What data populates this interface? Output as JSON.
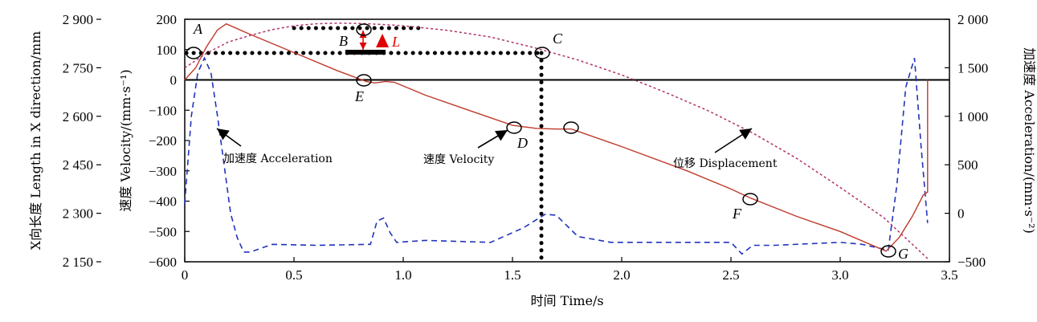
{
  "chart_data": {
    "type": "line",
    "x_axis": {
      "label": "时间  Time/s",
      "range": [
        0,
        3.5
      ],
      "ticks": [
        0,
        0.5,
        1.0,
        1.5,
        2.0,
        2.5,
        3.0,
        3.5
      ],
      "tick_labels": [
        "0",
        "0.5",
        "1.0",
        "1.5",
        "2.0",
        "2.5",
        "3.0",
        "3.5"
      ]
    },
    "y_axis_velocity": {
      "label": "速度  Velocity/(mm·s⁻¹)",
      "range": [
        -600,
        200
      ],
      "ticks": [
        -600,
        -500,
        -400,
        -300,
        -200,
        -100,
        0,
        100,
        200
      ],
      "tick_labels": [
        "−600",
        "−500",
        "−400",
        "−300",
        "−200",
        "−100",
        "0",
        "100",
        "200"
      ]
    },
    "y_axis_length": {
      "label": "X向长度  Length in X direction/mm",
      "range": [
        2150,
        2900
      ],
      "ticks": [
        2150,
        2300,
        2450,
        2600,
        2750,
        2900
      ],
      "tick_labels": [
        "2 150",
        "2 300",
        "2 450",
        "2 600",
        "2 750",
        "2 900"
      ]
    },
    "y_axis_acceleration": {
      "label": "加速度  Acceleration/(mm·s⁻²)",
      "range": [
        -500,
        2000
      ],
      "ticks": [
        -500,
        0,
        500,
        1000,
        1500,
        2000
      ],
      "tick_labels": [
        "−500",
        "0",
        "500",
        "1 000",
        "1 500",
        "2 000"
      ]
    },
    "series": [
      {
        "name": "速度 Velocity",
        "axis": "velocity",
        "color": "#c0392b",
        "style": "solid",
        "x": [
          0,
          0.05,
          0.1,
          0.15,
          0.19,
          0.3,
          0.5,
          0.7,
          0.83,
          0.87,
          0.92,
          0.96,
          1.1,
          1.3,
          1.5,
          1.61,
          1.7,
          1.77,
          2.0,
          2.3,
          2.5,
          2.59,
          2.8,
          3.0,
          3.21,
          3.27,
          3.33,
          3.38,
          3.4,
          3.4
        ],
        "y": [
          0,
          40,
          110,
          165,
          185,
          150,
          90,
          30,
          -5,
          -10,
          -5,
          -8,
          -50,
          -100,
          -150,
          -160,
          -162,
          -162,
          -220,
          -300,
          -360,
          -390,
          -450,
          -500,
          -565,
          -520,
          -450,
          -380,
          -370,
          0
        ]
      },
      {
        "name": "位移 Displacement",
        "axis": "length",
        "color": "#b0306a",
        "style": "dashed",
        "x": [
          0,
          0.1,
          0.2,
          0.3,
          0.4,
          0.5,
          0.6,
          0.7,
          0.8,
          0.9,
          1.0,
          1.2,
          1.4,
          1.6,
          1.8,
          2.0,
          2.2,
          2.4,
          2.6,
          2.8,
          3.0,
          3.2,
          3.4
        ],
        "y": [
          2750,
          2795,
          2830,
          2850,
          2868,
          2880,
          2886,
          2888,
          2887,
          2884,
          2880,
          2866,
          2845,
          2812,
          2774,
          2728,
          2674,
          2616,
          2548,
          2470,
          2380,
          2286,
          2160
        ]
      },
      {
        "name": "加速度 Acceleration",
        "axis": "acceleration",
        "color": "#2233bb",
        "style": "dashed",
        "x": [
          0,
          0.03,
          0.06,
          0.09,
          0.12,
          0.15,
          0.18,
          0.21,
          0.24,
          0.27,
          0.3,
          0.4,
          0.6,
          0.85,
          0.88,
          0.91,
          0.94,
          0.97,
          1.1,
          1.4,
          1.55,
          1.65,
          1.7,
          1.8,
          1.95,
          2.5,
          2.55,
          2.6,
          2.7,
          3.0,
          3.1,
          3.22,
          3.26,
          3.3,
          3.34,
          3.37,
          3.4
        ],
        "y": [
          100,
          1000,
          1450,
          1600,
          1450,
          1000,
          500,
          0,
          -250,
          -400,
          -400,
          -320,
          -330,
          -320,
          -80,
          -50,
          -200,
          -300,
          -280,
          -300,
          -150,
          -10,
          -20,
          -240,
          -300,
          -300,
          -420,
          -330,
          -330,
          -300,
          -320,
          -380,
          300,
          1300,
          1600,
          700,
          -100
        ]
      }
    ],
    "point_labels": [
      "A",
      "B",
      "C",
      "D",
      "E",
      "F",
      "G",
      "L"
    ],
    "annotations": [
      "加速度 Acceleration",
      "速度 Velocity",
      "位移 Displacement"
    ]
  }
}
